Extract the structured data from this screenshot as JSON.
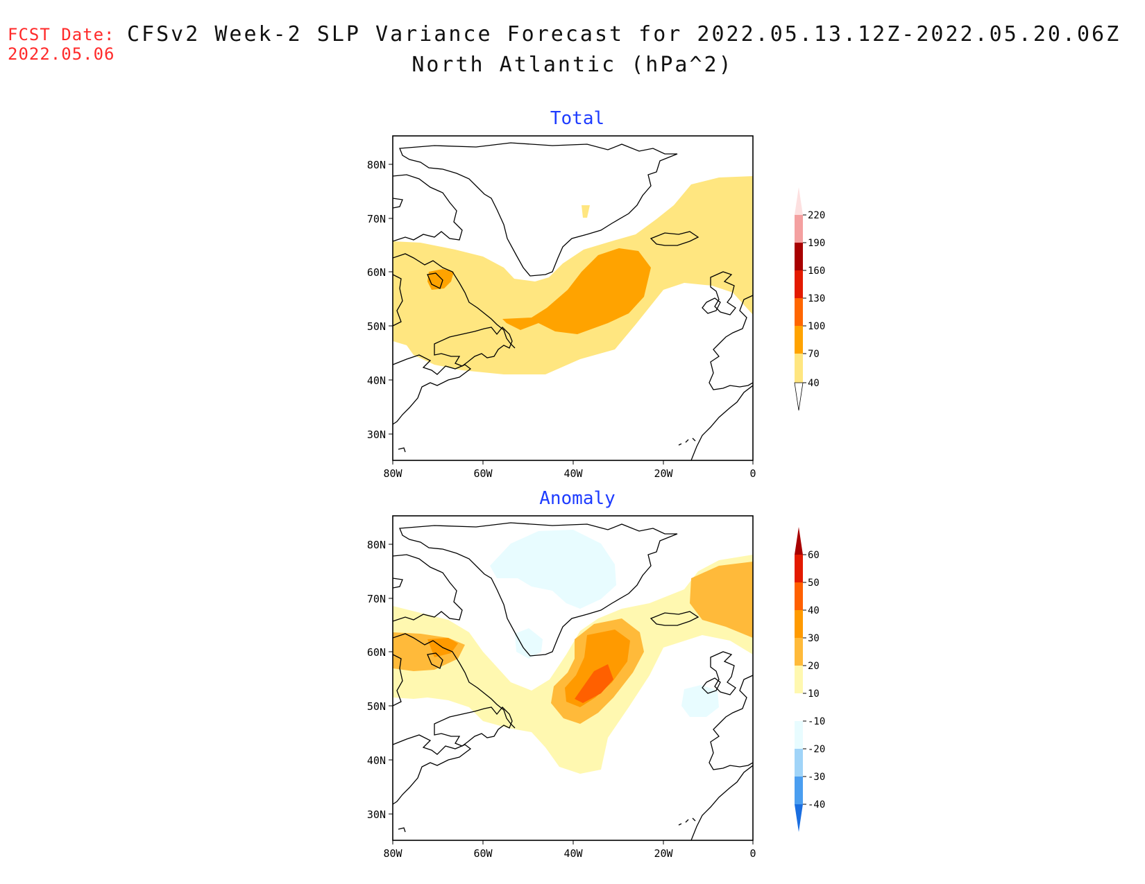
{
  "header": {
    "fcst_label": "FCST Date:",
    "fcst_date": "2022.05.06",
    "title_line1": "CFSv2 Week-2 SLP Variance Forecast for 2022.05.13.12Z-2022.05.20.06Z",
    "title_line2": "North Atlantic (hPa^2)"
  },
  "panels": [
    {
      "title": "Total",
      "lat_labels": [
        "80N",
        "70N",
        "60N",
        "50N",
        "40N",
        "30N"
      ],
      "lon_labels": [
        "80W",
        "60W",
        "40W",
        "20W",
        "0"
      ],
      "colorbar_labels": [
        "220",
        "190",
        "160",
        "130",
        "100",
        "70",
        "40"
      ]
    },
    {
      "title": "Anomaly",
      "lat_labels": [
        "80N",
        "70N",
        "60N",
        "50N",
        "40N",
        "30N"
      ],
      "lon_labels": [
        "80W",
        "60W",
        "40W",
        "20W",
        "0"
      ],
      "colorbar_labels": [
        "60",
        "50",
        "40",
        "30",
        "20",
        "10",
        "-10",
        "-20",
        "-30",
        "-40"
      ]
    }
  ],
  "colors": {
    "total_40_70": "#ffe680",
    "total_70_100": "#ffa300",
    "total_100_130": "#ff6600",
    "total_130_160": "#e31a00",
    "total_160_190": "#a80000",
    "total_190_220": "#f4a0a0",
    "total_above_220": "#fde0e0",
    "anom_10_20": "#fff8b0",
    "anom_20_30": "#ffba3a",
    "anom_30_40": "#ff9a00",
    "anom_40_50": "#ff6000",
    "anom_50_60": "#e31a00",
    "anom_above_60": "#a80000",
    "anom_m10_m20": "#e8fcff",
    "anom_m20_m30": "#a0d4f8",
    "anom_m30_m40": "#4a9ef0",
    "anom_below_m40": "#1a6ee0",
    "title_blue": "#1e3cff",
    "fcst_red": "#ff2a2a"
  }
}
